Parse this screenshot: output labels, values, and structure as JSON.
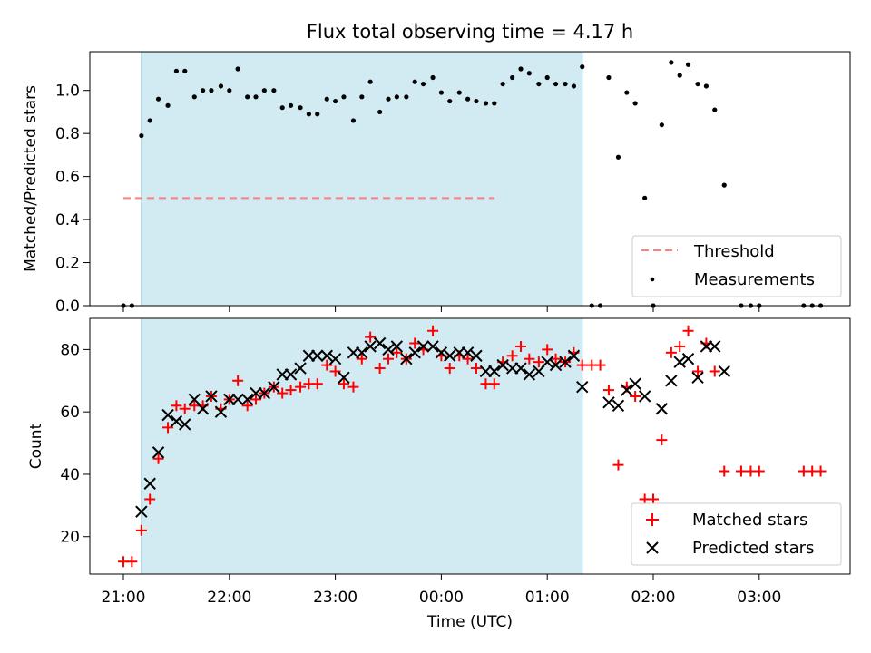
{
  "title": "Flux total observing time = 4.17 h",
  "xlabel": "Time (UTC)",
  "x_ticks": [
    "21:00",
    "22:00",
    "23:00",
    "00:00",
    "01:00",
    "02:00",
    "03:00"
  ],
  "colors": {
    "shaded": "#add8e6",
    "threshold": "#ff7f7f",
    "matched": "#ff0000",
    "predicted": "#000000",
    "measurements": "#000000"
  },
  "chart_data": [
    {
      "type": "scatter",
      "x_unit": "hours after 21:00 UTC",
      "ylabel": "Matched/Predicted stars",
      "ylim": [
        0,
        1.18
      ],
      "y_ticks": [
        "0.0",
        "0.2",
        "0.4",
        "0.6",
        "0.8",
        "1.0"
      ],
      "shaded_region": [
        0.17,
        4.33
      ],
      "threshold": {
        "value": 0.5,
        "x_range": [
          0.0,
          3.5
        ]
      },
      "legend": {
        "position": "lower-right",
        "entries": [
          "Threshold",
          "Measurements"
        ]
      },
      "series": [
        {
          "name": "Measurements",
          "marker": "dot",
          "points": [
            [
              0.0,
              0
            ],
            [
              0.08,
              0
            ],
            [
              0.17,
              0.79
            ],
            [
              0.25,
              0.86
            ],
            [
              0.33,
              0.96
            ],
            [
              0.42,
              0.93
            ],
            [
              0.5,
              1.09
            ],
            [
              0.58,
              1.09
            ],
            [
              0.67,
              0.97
            ],
            [
              0.75,
              1.0
            ],
            [
              0.83,
              1.0
            ],
            [
              0.92,
              1.02
            ],
            [
              1.0,
              1.0
            ],
            [
              1.08,
              1.1
            ],
            [
              1.17,
              0.97
            ],
            [
              1.25,
              0.97
            ],
            [
              1.33,
              1.0
            ],
            [
              1.42,
              1.0
            ],
            [
              1.5,
              0.92
            ],
            [
              1.58,
              0.93
            ],
            [
              1.67,
              0.92
            ],
            [
              1.75,
              0.89
            ],
            [
              1.83,
              0.89
            ],
            [
              1.92,
              0.96
            ],
            [
              2.0,
              0.95
            ],
            [
              2.08,
              0.97
            ],
            [
              2.17,
              0.86
            ],
            [
              2.25,
              0.97
            ],
            [
              2.33,
              1.04
            ],
            [
              2.42,
              0.9
            ],
            [
              2.5,
              0.96
            ],
            [
              2.58,
              0.97
            ],
            [
              2.67,
              0.97
            ],
            [
              2.75,
              1.04
            ],
            [
              2.83,
              1.03
            ],
            [
              2.92,
              1.06
            ],
            [
              3.0,
              0.99
            ],
            [
              3.08,
              0.95
            ],
            [
              3.17,
              0.99
            ],
            [
              3.25,
              0.96
            ],
            [
              3.33,
              0.95
            ],
            [
              3.42,
              0.94
            ],
            [
              3.5,
              0.94
            ],
            [
              3.58,
              1.03
            ],
            [
              3.67,
              1.06
            ],
            [
              3.75,
              1.1
            ],
            [
              3.83,
              1.08
            ],
            [
              3.92,
              1.03
            ],
            [
              4.0,
              1.06
            ],
            [
              4.08,
              1.03
            ],
            [
              4.17,
              1.03
            ],
            [
              4.25,
              1.02
            ],
            [
              4.33,
              1.11
            ],
            [
              4.42,
              0
            ],
            [
              4.5,
              0
            ],
            [
              4.58,
              1.06
            ],
            [
              4.67,
              0.69
            ],
            [
              4.75,
              0.99
            ],
            [
              4.83,
              0.94
            ],
            [
              4.92,
              0.5
            ],
            [
              5.0,
              0
            ],
            [
              5.08,
              0.84
            ],
            [
              5.17,
              1.13
            ],
            [
              5.25,
              1.07
            ],
            [
              5.33,
              1.12
            ],
            [
              5.42,
              1.03
            ],
            [
              5.5,
              1.02
            ],
            [
              5.58,
              0.91
            ],
            [
              5.67,
              0.56
            ],
            [
              5.83,
              0
            ],
            [
              5.92,
              0
            ],
            [
              6.0,
              0
            ],
            [
              6.42,
              0
            ],
            [
              6.5,
              0
            ],
            [
              6.58,
              0
            ]
          ]
        }
      ]
    },
    {
      "type": "scatter",
      "x_unit": "hours after 21:00 UTC",
      "ylabel": "Count",
      "ylim": [
        8,
        90
      ],
      "y_ticks": [
        "20",
        "40",
        "60",
        "80"
      ],
      "shaded_region": [
        0.17,
        4.33
      ],
      "legend": {
        "position": "lower-right",
        "entries": [
          "Matched stars",
          "Predicted stars"
        ]
      },
      "series": [
        {
          "name": "Matched stars",
          "marker": "plus",
          "points": [
            [
              0.0,
              12
            ],
            [
              0.08,
              12
            ],
            [
              0.17,
              22
            ],
            [
              0.25,
              32
            ],
            [
              0.33,
              45
            ],
            [
              0.42,
              55
            ],
            [
              0.5,
              62
            ],
            [
              0.58,
              61
            ],
            [
              0.67,
              62
            ],
            [
              0.75,
              62
            ],
            [
              0.83,
              65
            ],
            [
              0.92,
              61
            ],
            [
              1.0,
              64
            ],
            [
              1.08,
              70
            ],
            [
              1.17,
              62
            ],
            [
              1.25,
              64
            ],
            [
              1.33,
              66
            ],
            [
              1.42,
              68
            ],
            [
              1.5,
              66
            ],
            [
              1.58,
              67
            ],
            [
              1.67,
              68
            ],
            [
              1.75,
              69
            ],
            [
              1.83,
              69
            ],
            [
              1.92,
              75
            ],
            [
              2.0,
              73
            ],
            [
              2.08,
              69
            ],
            [
              2.17,
              68
            ],
            [
              2.25,
              77
            ],
            [
              2.33,
              84
            ],
            [
              2.42,
              74
            ],
            [
              2.5,
              77
            ],
            [
              2.58,
              79
            ],
            [
              2.67,
              77
            ],
            [
              2.75,
              82
            ],
            [
              2.83,
              80
            ],
            [
              2.92,
              86
            ],
            [
              3.0,
              78
            ],
            [
              3.08,
              74
            ],
            [
              3.17,
              78
            ],
            [
              3.25,
              77
            ],
            [
              3.33,
              74
            ],
            [
              3.42,
              69
            ],
            [
              3.5,
              69
            ],
            [
              3.58,
              76
            ],
            [
              3.67,
              78
            ],
            [
              3.75,
              81
            ],
            [
              3.83,
              77
            ],
            [
              3.92,
              76
            ],
            [
              4.0,
              80
            ],
            [
              4.08,
              77
            ],
            [
              4.17,
              76
            ],
            [
              4.25,
              79
            ],
            [
              4.33,
              75
            ],
            [
              4.42,
              75
            ],
            [
              4.5,
              75
            ],
            [
              4.58,
              67
            ],
            [
              4.67,
              43
            ],
            [
              4.75,
              68
            ],
            [
              4.83,
              65
            ],
            [
              4.92,
              32
            ],
            [
              5.0,
              32
            ],
            [
              5.08,
              51
            ],
            [
              5.17,
              79
            ],
            [
              5.25,
              81
            ],
            [
              5.33,
              86
            ],
            [
              5.42,
              73
            ],
            [
              5.5,
              82
            ],
            [
              5.58,
              73
            ],
            [
              5.67,
              41
            ],
            [
              5.83,
              41
            ],
            [
              5.92,
              41
            ],
            [
              6.0,
              41
            ],
            [
              6.42,
              41
            ],
            [
              6.5,
              41
            ],
            [
              6.58,
              41
            ]
          ]
        },
        {
          "name": "Predicted stars",
          "marker": "x",
          "points": [
            [
              0.17,
              28
            ],
            [
              0.25,
              37
            ],
            [
              0.33,
              47
            ],
            [
              0.42,
              59
            ],
            [
              0.5,
              57
            ],
            [
              0.58,
              56
            ],
            [
              0.67,
              64
            ],
            [
              0.75,
              61
            ],
            [
              0.83,
              65
            ],
            [
              0.92,
              60
            ],
            [
              1.0,
              64
            ],
            [
              1.08,
              64
            ],
            [
              1.17,
              64
            ],
            [
              1.25,
              66
            ],
            [
              1.33,
              66
            ],
            [
              1.42,
              68
            ],
            [
              1.5,
              72
            ],
            [
              1.58,
              72
            ],
            [
              1.67,
              74
            ],
            [
              1.75,
              78
            ],
            [
              1.83,
              78
            ],
            [
              1.92,
              78
            ],
            [
              2.0,
              77
            ],
            [
              2.08,
              71
            ],
            [
              2.17,
              79
            ],
            [
              2.25,
              79
            ],
            [
              2.33,
              81
            ],
            [
              2.42,
              82
            ],
            [
              2.5,
              80
            ],
            [
              2.58,
              81
            ],
            [
              2.67,
              77
            ],
            [
              2.75,
              79
            ],
            [
              2.83,
              81
            ],
            [
              2.92,
              81
            ],
            [
              3.0,
              79
            ],
            [
              3.08,
              78
            ],
            [
              3.17,
              79
            ],
            [
              3.25,
              79
            ],
            [
              3.33,
              78
            ],
            [
              3.42,
              73
            ],
            [
              3.5,
              73
            ],
            [
              3.58,
              75
            ],
            [
              3.67,
              74
            ],
            [
              3.75,
              74
            ],
            [
              3.83,
              72
            ],
            [
              3.92,
              73
            ],
            [
              4.0,
              76
            ],
            [
              4.08,
              75
            ],
            [
              4.17,
              76
            ],
            [
              4.25,
              78
            ],
            [
              4.33,
              68
            ],
            [
              4.58,
              63
            ],
            [
              4.67,
              62
            ],
            [
              4.75,
              67
            ],
            [
              4.83,
              69
            ],
            [
              4.92,
              65
            ],
            [
              5.08,
              61
            ],
            [
              5.17,
              70
            ],
            [
              5.25,
              76
            ],
            [
              5.33,
              77
            ],
            [
              5.42,
              71
            ],
            [
              5.5,
              81
            ],
            [
              5.58,
              81
            ],
            [
              5.67,
              73
            ]
          ]
        }
      ]
    }
  ]
}
